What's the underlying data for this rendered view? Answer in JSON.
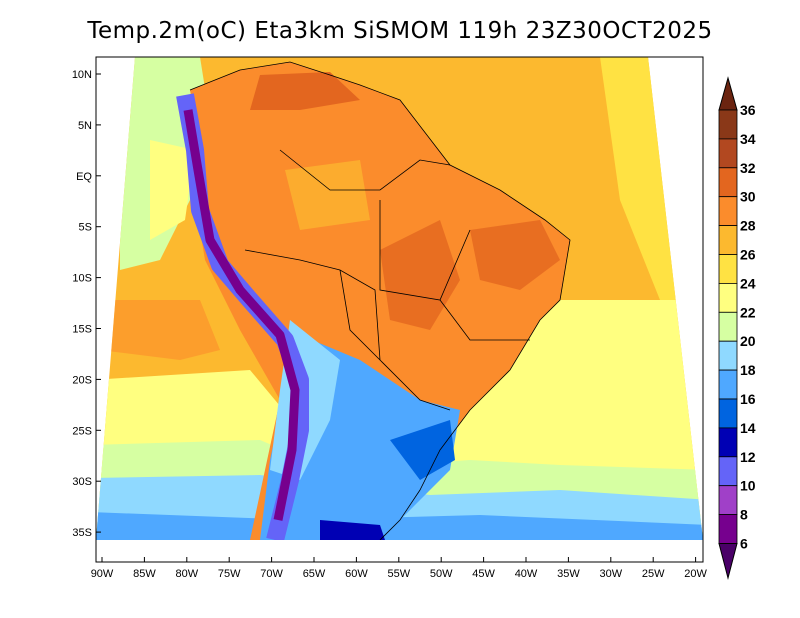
{
  "title": "Temp.2m(oC) Eta3km SiSMOM 119h 23Z30OCT2025",
  "lat_labels": [
    "10N",
    "5N",
    "EQ",
    "5S",
    "10S",
    "15S",
    "20S",
    "25S",
    "30S",
    "35S"
  ],
  "lon_labels": [
    "90W",
    "85W",
    "80W",
    "75W",
    "70W",
    "65W",
    "60W",
    "55W",
    "50W",
    "45W",
    "40W",
    "35W",
    "30W",
    "25W",
    "20W"
  ],
  "colorbar": {
    "levels": [
      "36",
      "34",
      "32",
      "30",
      "28",
      "26",
      "24",
      "22",
      "20",
      "18",
      "16",
      "14",
      "12",
      "10",
      "8",
      "6"
    ],
    "colors": [
      "#6b2410",
      "#8a3818",
      "#b24820",
      "#e3661f",
      "#fb8c2c",
      "#fcb92f",
      "#ffe243",
      "#ffff80",
      "#d6ffa2",
      "#8fd9ff",
      "#4fa8ff",
      "#0064e0",
      "#0000b4",
      "#6464f8",
      "#a040c8",
      "#76008e",
      "#4a0068"
    ]
  }
}
